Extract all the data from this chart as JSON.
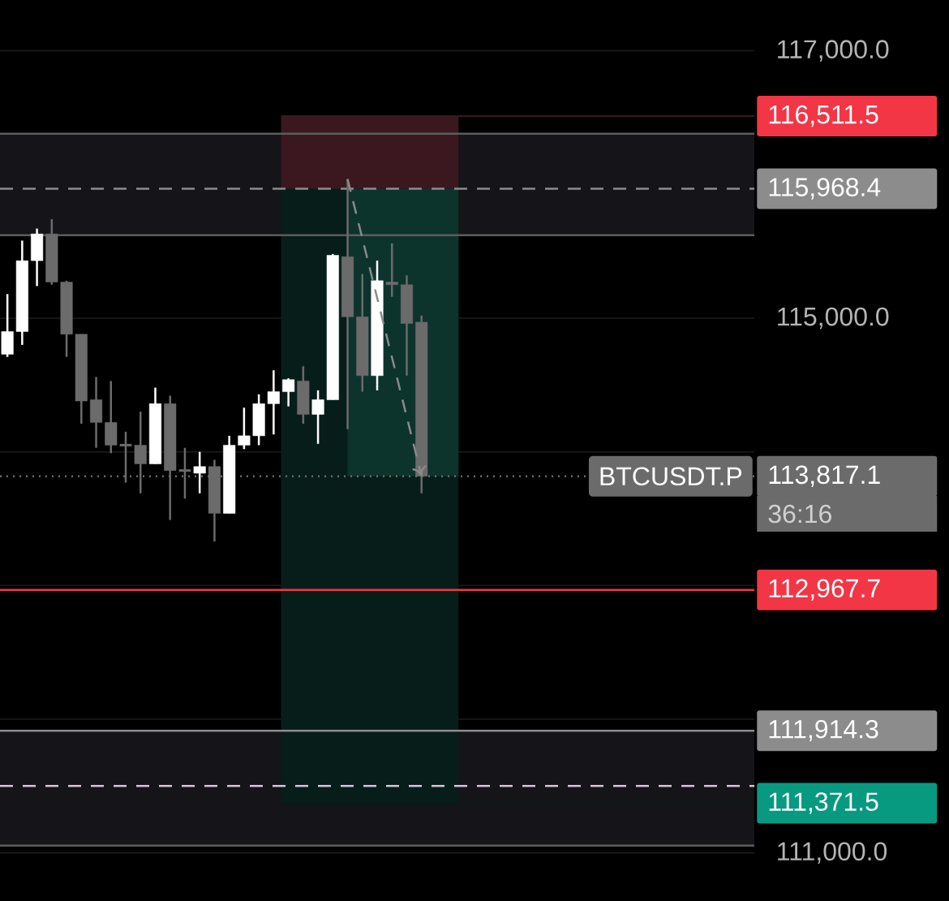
{
  "chart_data": {
    "type": "candlestick",
    "categories": [
      null,
      null,
      null,
      null,
      null,
      null,
      null,
      null,
      null,
      null,
      null,
      null,
      null,
      null,
      null,
      null,
      null,
      null,
      null,
      null,
      null,
      null,
      null,
      null,
      null,
      null,
      null,
      null,
      null,
      null,
      null,
      null,
      null,
      null,
      null,
      null,
      null,
      null,
      null,
      null,
      null,
      null,
      null,
      null,
      null,
      null,
      null,
      null,
      null,
      null,
      null
    ],
    "ylim": [
      110640,
      117380
    ],
    "yticks": [
      {
        "value": 117000,
        "label": "117,000.0"
      },
      {
        "value": 116000,
        "label": null
      },
      {
        "value": 115000,
        "label": "115,000.0"
      },
      {
        "value": 114000,
        "label": null
      },
      {
        "value": 113000,
        "label": null
      },
      {
        "value": 112000,
        "label": null
      },
      {
        "value": 111000,
        "label": "111,000.0"
      }
    ],
    "tick_labels": "y",
    "grid": "y",
    "series": [
      {
        "ohlc": [
          [
            114730,
            115180,
            114710,
            114900
          ],
          [
            114900,
            115580,
            114800,
            115430
          ],
          [
            115430,
            115670,
            115240,
            115630
          ],
          [
            115630,
            115740,
            115250,
            115270
          ],
          [
            115270,
            115280,
            114710,
            114880
          ],
          [
            114880,
            114880,
            114210,
            114380
          ],
          [
            114390,
            114560,
            114030,
            114220
          ],
          [
            114220,
            114530,
            113990,
            114050
          ],
          [
            114050,
            114150,
            113770,
            114050
          ],
          [
            114050,
            114300,
            113690,
            113910
          ],
          [
            113910,
            114480,
            113910,
            114360
          ],
          [
            114360,
            114420,
            113490,
            113860
          ],
          [
            113860,
            114030,
            113650,
            113860
          ],
          [
            113840,
            114000,
            113690,
            113890
          ],
          [
            113890,
            113940,
            113330,
            113540
          ],
          [
            113540,
            114120,
            113540,
            114050
          ],
          [
            114050,
            114330,
            114020,
            114120
          ],
          [
            114120,
            114430,
            114050,
            114360
          ],
          [
            114360,
            114610,
            114130,
            114450
          ],
          [
            114450,
            114550,
            114340,
            114540
          ],
          [
            114530,
            114640,
            114210,
            114280
          ],
          [
            114280,
            114460,
            114060,
            114390
          ],
          [
            114390,
            115480,
            114390,
            115470
          ],
          [
            115460,
            116040,
            114170,
            115010
          ],
          [
            115010,
            115330,
            114450,
            114570
          ],
          [
            114570,
            115430,
            114460,
            115280
          ],
          [
            115270,
            115560,
            115160,
            115250
          ],
          [
            115250,
            115320,
            114570,
            114960
          ],
          [
            114970,
            115020,
            113690,
            113817.1
          ],
          null,
          null,
          null,
          null,
          null,
          null,
          null,
          null,
          null,
          null,
          null,
          null,
          null,
          null,
          null,
          null,
          null,
          null,
          null,
          null,
          null,
          null
        ],
        "colors": [
          "#ffffff",
          "#ffffff",
          "#ffffff",
          "#6b6b6b",
          "#6b6b6b",
          "#6b6b6b",
          "#6b6b6b",
          "#6b6b6b",
          "#6b6b6b",
          "#6b6b6b",
          "#ffffff",
          "#6b6b6b",
          "#6b6b6b",
          "#ffffff",
          "#6b6b6b",
          "#ffffff",
          "#ffffff",
          "#ffffff",
          "#ffffff",
          "#ffffff",
          "#6b6b6b",
          "#ffffff",
          "#ffffff",
          "#6b6b6b",
          "#6b6b6b",
          "#ffffff",
          "#6b6b6b",
          "#6b6b6b",
          "#6b6b6b",
          null,
          null,
          null,
          null,
          null,
          null,
          null,
          null,
          null,
          null,
          null,
          null,
          null,
          null,
          null,
          null,
          null,
          null,
          null,
          null,
          null,
          null
        ]
      }
    ],
    "bands": [
      {
        "axis": "y",
        "from": 115620,
        "to": 116380,
        "color": "#151418"
      },
      {
        "axis": "y",
        "from": 111055,
        "to": 111914.3,
        "color": "#151418"
      },
      {
        "axis": "y",
        "from": 115968.4,
        "to": 116511.5,
        "color": "#3b1820",
        "label": "116,511.5"
      },
      {
        "axis": "y",
        "from": 115968.4,
        "to": 111371.5,
        "color": "#071d19",
        "label": "111,371.5"
      },
      {
        "axis": "y",
        "from": 113817.1,
        "to": 115968.4,
        "color": "#0d332d"
      }
    ],
    "ref_lines": [
      {
        "axis": "y",
        "value": 116380,
        "color": "#5c5c5c",
        "line_style": "solid"
      },
      {
        "axis": "y",
        "value": 115620,
        "color": "#5c5c5c",
        "line_style": "solid"
      },
      {
        "axis": "y",
        "value": 111055,
        "color": "#5c5c5c",
        "line_style": "solid"
      },
      {
        "axis": "y",
        "value": 111500,
        "color": "#d7bfe0",
        "line_style": "dashed"
      },
      {
        "axis": "y",
        "value": 115968.4,
        "label": "115,968.4",
        "color": "#8c8c8c",
        "line_style": "dashed"
      },
      {
        "axis": "y",
        "value": 113817.1,
        "label": "113,817.1",
        "color": "#6b6b6b",
        "line_style": "dotted"
      },
      {
        "axis": "y",
        "value": 112967.7,
        "label": "112,967.7",
        "color": "#f23645",
        "line_style": "solid"
      },
      {
        "axis": "y",
        "value": 111914.3,
        "label": "111,914.3",
        "color": "#8c8c8c",
        "line_style": "solid"
      }
    ],
    "annotations": [
      "BTCUSDT.P",
      "36:16"
    ]
  }
}
